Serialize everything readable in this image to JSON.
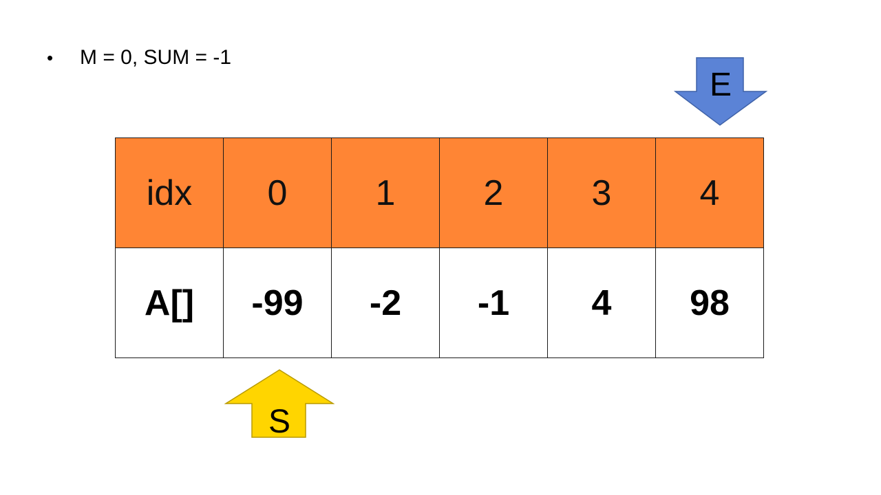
{
  "bullet": {
    "marker": "•",
    "text": "M = 0, SUM = -1"
  },
  "table": {
    "header_row": [
      "idx",
      "0",
      "1",
      "2",
      "3",
      "4"
    ],
    "value_row": [
      "A[]",
      "-99",
      "-2",
      "-1",
      "4",
      "98"
    ]
  },
  "pointers": {
    "end": {
      "label": "E",
      "direction": "down",
      "index": 4,
      "color": "#5b83d6"
    },
    "start": {
      "label": "S",
      "direction": "up",
      "index": 0,
      "color": "#ffd500"
    }
  },
  "colors": {
    "header_fill": "#ff8534",
    "value_fill": "#ffffff",
    "border": "#1a1a1a"
  }
}
